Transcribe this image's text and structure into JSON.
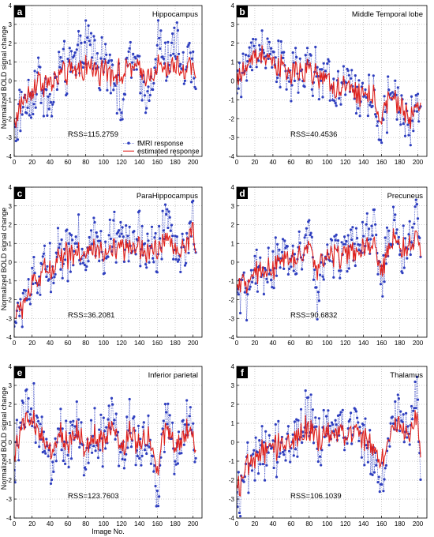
{
  "figure": {
    "shared_ylabel": "Normalized BOLD signal change",
    "shared_xlabel": "Image No.",
    "legend": {
      "fmri_label": "fMRI response",
      "est_label": "estimated response"
    },
    "colors": {
      "fmri": "#2f3fbf",
      "estimated": "#e0201a",
      "grid": "#9a9a9a",
      "axis": "#000000"
    },
    "x_ticks": [
      "0",
      "20",
      "40",
      "60",
      "80",
      "100",
      "120",
      "140",
      "160",
      "180",
      "200"
    ],
    "y_ticks": [
      "-4",
      "-3",
      "-2",
      "-1",
      "0",
      "1",
      "2",
      "3",
      "4"
    ]
  },
  "chart_data": [
    {
      "type": "line",
      "panel_letter": "a",
      "title": "Hippocampus",
      "rss_label": "RSS=115.2759",
      "has_legend": true,
      "xlim": [
        0,
        210
      ],
      "ylim": [
        -4,
        4
      ],
      "grid": true,
      "series": [
        {
          "name": "fMRI response",
          "x": [
            0,
            10,
            20,
            30,
            40,
            50,
            60,
            70,
            80,
            90,
            100,
            110,
            120,
            130,
            140,
            150,
            160,
            170,
            180,
            190,
            200,
            203
          ],
          "values": [
            -2.5,
            -1.2,
            -0.5,
            0.1,
            -1.8,
            0.9,
            0.2,
            1.2,
            2.3,
            1.5,
            0.6,
            1.0,
            -1.2,
            1.3,
            0.2,
            -0.8,
            2.1,
            1.0,
            1.8,
            0.9,
            1.6,
            0.0
          ]
        },
        {
          "name": "estimated response",
          "x": [
            0,
            10,
            20,
            30,
            40,
            50,
            60,
            70,
            80,
            90,
            100,
            110,
            120,
            130,
            140,
            150,
            160,
            170,
            180,
            190,
            200,
            203
          ],
          "values": [
            -2.2,
            -1.0,
            -0.4,
            0.0,
            -0.2,
            0.3,
            0.4,
            0.5,
            0.8,
            0.6,
            0.5,
            0.6,
            0.3,
            0.7,
            0.5,
            0.3,
            0.8,
            0.6,
            0.7,
            0.5,
            1.1,
            0.4
          ]
        }
      ]
    },
    {
      "type": "line",
      "panel_letter": "b",
      "title": "Middle Temporal lobe",
      "rss_label": "RSS=40.4536",
      "has_legend": false,
      "xlim": [
        0,
        210
      ],
      "ylim": [
        -4,
        4
      ],
      "grid": true,
      "series": [
        {
          "name": "fMRI response",
          "x": [
            0,
            10,
            20,
            30,
            40,
            50,
            60,
            70,
            80,
            90,
            100,
            110,
            120,
            130,
            140,
            150,
            160,
            170,
            180,
            190,
            200,
            203
          ],
          "values": [
            0.0,
            0.8,
            1.5,
            1.9,
            0.9,
            0.6,
            0.3,
            0.5,
            0.7,
            0.2,
            0.1,
            -0.4,
            -0.8,
            -0.4,
            -0.9,
            -0.6,
            -2.6,
            -0.8,
            -1.4,
            -2.5,
            -1.3,
            -1.5
          ]
        },
        {
          "name": "estimated response",
          "x": [
            0,
            10,
            20,
            30,
            40,
            50,
            60,
            70,
            80,
            90,
            100,
            110,
            120,
            130,
            140,
            150,
            160,
            170,
            180,
            190,
            200,
            203
          ],
          "values": [
            0.0,
            0.7,
            1.3,
            1.5,
            0.9,
            0.6,
            0.4,
            0.5,
            0.5,
            0.2,
            0.0,
            -0.4,
            -0.6,
            -0.5,
            -0.8,
            -0.7,
            -1.9,
            -0.9,
            -1.3,
            -2.0,
            -1.3,
            -1.4
          ]
        }
      ]
    },
    {
      "type": "line",
      "panel_letter": "c",
      "title": "ParaHippocampus",
      "rss_label": "RSS=36.2081",
      "has_legend": false,
      "xlim": [
        0,
        210
      ],
      "ylim": [
        -4,
        4
      ],
      "grid": true,
      "series": [
        {
          "name": "fMRI response",
          "x": [
            0,
            10,
            20,
            30,
            40,
            50,
            60,
            70,
            80,
            90,
            100,
            110,
            120,
            130,
            140,
            150,
            160,
            170,
            180,
            190,
            200,
            203
          ],
          "values": [
            -3.3,
            -2.0,
            -1.5,
            -0.5,
            -0.2,
            0.6,
            0.3,
            1.5,
            0.2,
            1.3,
            0.0,
            1.5,
            0.9,
            0.3,
            1.3,
            0.7,
            0.6,
            2.3,
            1.3,
            0.5,
            2.0,
            0.8
          ]
        },
        {
          "name": "estimated response",
          "x": [
            0,
            10,
            20,
            30,
            40,
            50,
            60,
            70,
            80,
            90,
            100,
            110,
            120,
            130,
            140,
            150,
            160,
            170,
            180,
            190,
            200,
            203
          ],
          "values": [
            -3.0,
            -2.2,
            -1.3,
            -0.7,
            -0.3,
            0.3,
            0.4,
            0.6,
            0.5,
            0.6,
            0.3,
            0.7,
            0.6,
            0.5,
            0.8,
            0.6,
            0.7,
            1.2,
            0.9,
            0.7,
            1.6,
            0.6
          ]
        }
      ]
    },
    {
      "type": "line",
      "panel_letter": "d",
      "title": "Precuneus",
      "rss_label": "RSS=90.6832",
      "has_legend": false,
      "xlim": [
        0,
        210
      ],
      "ylim": [
        -4,
        4
      ],
      "grid": true,
      "series": [
        {
          "name": "fMRI response",
          "x": [
            0,
            10,
            20,
            30,
            40,
            50,
            60,
            70,
            80,
            90,
            100,
            110,
            120,
            130,
            140,
            150,
            160,
            170,
            180,
            190,
            200,
            203
          ],
          "values": [
            -2.0,
            -1.5,
            -1.0,
            -0.6,
            -0.2,
            0.1,
            0.0,
            0.3,
            1.2,
            -1.8,
            0.6,
            0.5,
            0.8,
            0.3,
            1.0,
            2.2,
            -1.0,
            2.0,
            1.0,
            0.5,
            2.8,
            0.0
          ]
        },
        {
          "name": "estimated response",
          "x": [
            0,
            10,
            20,
            30,
            40,
            50,
            60,
            70,
            80,
            90,
            100,
            110,
            120,
            130,
            140,
            150,
            160,
            170,
            180,
            190,
            200,
            203
          ],
          "values": [
            -1.6,
            -1.1,
            -0.8,
            -0.5,
            -0.3,
            0.0,
            0.1,
            0.3,
            0.6,
            -0.2,
            0.4,
            0.4,
            0.6,
            0.3,
            0.6,
            1.0,
            -0.5,
            1.2,
            0.9,
            0.6,
            1.5,
            0.3
          ]
        }
      ]
    },
    {
      "type": "line",
      "panel_letter": "e",
      "title": "Inferior parietal",
      "rss_label": "RSS=123.7603",
      "has_legend": false,
      "xlim": [
        0,
        210
      ],
      "ylim": [
        -4,
        4
      ],
      "grid": true,
      "series": [
        {
          "name": "fMRI response",
          "x": [
            0,
            10,
            20,
            30,
            40,
            50,
            60,
            70,
            80,
            90,
            100,
            110,
            120,
            130,
            140,
            150,
            160,
            170,
            180,
            190,
            200,
            203
          ],
          "values": [
            -1.0,
            1.2,
            1.8,
            0.4,
            -1.5,
            1.0,
            -0.5,
            1.2,
            -0.7,
            0.8,
            0.0,
            1.8,
            -0.8,
            1.1,
            -0.2,
            1.0,
            -2.9,
            1.5,
            -0.7,
            0.6,
            0.8,
            -1.7
          ]
        },
        {
          "name": "estimated response",
          "x": [
            0,
            10,
            20,
            30,
            40,
            50,
            60,
            70,
            80,
            90,
            100,
            110,
            120,
            130,
            140,
            150,
            160,
            170,
            180,
            190,
            200,
            203
          ],
          "values": [
            -0.5,
            0.8,
            1.2,
            0.3,
            -0.8,
            0.6,
            -0.2,
            0.7,
            -0.3,
            0.4,
            0.1,
            1.0,
            -0.4,
            0.6,
            0.0,
            0.5,
            -1.5,
            0.8,
            -0.3,
            0.3,
            0.5,
            -0.9
          ]
        }
      ]
    },
    {
      "type": "line",
      "panel_letter": "f",
      "title": "Thalamus",
      "rss_label": "RSS=106.1039",
      "has_legend": false,
      "xlim": [
        0,
        210
      ],
      "ylim": [
        -4,
        4
      ],
      "grid": true,
      "series": [
        {
          "name": "fMRI response",
          "x": [
            0,
            10,
            20,
            30,
            40,
            50,
            60,
            70,
            80,
            90,
            100,
            110,
            120,
            130,
            140,
            150,
            160,
            170,
            180,
            190,
            200,
            203
          ],
          "values": [
            -2.7,
            -1.8,
            -1.2,
            -0.6,
            -0.8,
            0.3,
            -0.2,
            0.5,
            1.8,
            -0.4,
            0.6,
            1.5,
            0.0,
            1.3,
            0.2,
            -0.9,
            -2.1,
            0.8,
            1.6,
            0.5,
            2.4,
            -1.0
          ]
        },
        {
          "name": "estimated response",
          "x": [
            0,
            10,
            20,
            30,
            40,
            50,
            60,
            70,
            80,
            90,
            100,
            110,
            120,
            130,
            140,
            150,
            160,
            170,
            180,
            190,
            200,
            203
          ],
          "values": [
            -2.3,
            -1.5,
            -1.0,
            -0.5,
            -0.4,
            0.1,
            0.0,
            0.3,
            0.8,
            0.0,
            0.4,
            0.7,
            0.2,
            0.7,
            0.3,
            -0.2,
            -1.0,
            0.5,
            0.9,
            0.4,
            1.2,
            -0.3
          ]
        }
      ]
    }
  ]
}
